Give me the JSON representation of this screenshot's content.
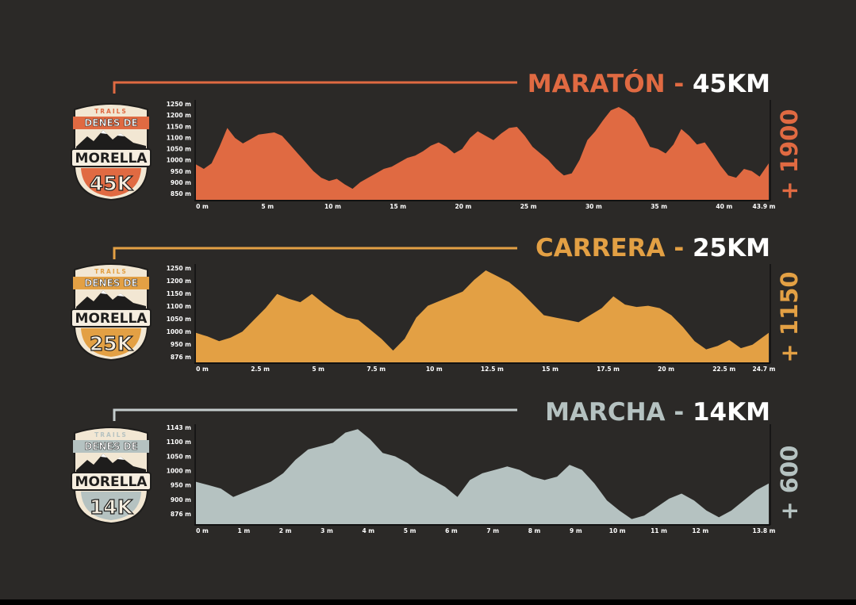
{
  "chart_data": [
    {
      "type": "area",
      "title_name": "MARATÓN",
      "title_sep": " - ",
      "title_dist": "45KM",
      "gain": "+ 1900",
      "color": "#e06a42",
      "line_color": "#e06a42",
      "badge": {
        "top": "TRAILS",
        "name1": "DENES DE",
        "name2": "MORELLA",
        "dist": "45K"
      },
      "x_ticks": [
        "0 m",
        "5 m",
        "10 m",
        "15 m",
        "20 m",
        "25 m",
        "30 m",
        "35 m",
        "40 m",
        "43.9 m"
      ],
      "x_tick_values": [
        0,
        5,
        10,
        15,
        20,
        25,
        30,
        35,
        40,
        43.9
      ],
      "y_ticks": [
        "1250 m",
        "1200 m",
        "1150 m",
        "1100 m",
        "1050 m",
        "1000 m",
        "950 m",
        "900 m",
        "850 m"
      ],
      "y_tick_values": [
        1250,
        1200,
        1150,
        1100,
        1050,
        1000,
        950,
        900,
        850
      ],
      "xlim": [
        0,
        43.9
      ],
      "ylim": [
        820,
        1265
      ],
      "x": [
        0,
        0.6,
        1.2,
        1.8,
        2.4,
        3,
        3.6,
        4.2,
        4.8,
        5.4,
        6,
        6.6,
        7.2,
        7.8,
        8.4,
        9,
        9.6,
        10.2,
        10.8,
        11.4,
        12,
        12.6,
        13.2,
        13.8,
        14.4,
        15,
        15.6,
        16.2,
        16.8,
        17.4,
        18,
        18.6,
        19.2,
        19.8,
        20.4,
        21,
        21.6,
        22.2,
        22.8,
        23.4,
        24,
        24.6,
        25.2,
        25.8,
        26.4,
        27,
        27.6,
        28.2,
        28.8,
        29.4,
        30,
        30.6,
        31.2,
        31.8,
        32.4,
        33,
        33.6,
        34.2,
        34.8,
        35.4,
        36,
        36.6,
        37.2,
        37.8,
        38.4,
        39,
        39.6,
        40.2,
        40.8,
        41.4,
        42,
        42.6,
        43.2,
        43.9
      ],
      "y": [
        980,
        960,
        985,
        1060,
        1145,
        1100,
        1075,
        1095,
        1115,
        1120,
        1125,
        1110,
        1070,
        1030,
        990,
        950,
        920,
        905,
        915,
        890,
        870,
        900,
        920,
        940,
        960,
        970,
        990,
        1010,
        1020,
        1040,
        1065,
        1080,
        1060,
        1030,
        1050,
        1100,
        1130,
        1110,
        1090,
        1120,
        1145,
        1150,
        1110,
        1060,
        1030,
        1000,
        960,
        930,
        940,
        1000,
        1090,
        1130,
        1180,
        1225,
        1240,
        1220,
        1190,
        1130,
        1060,
        1050,
        1030,
        1070,
        1140,
        1110,
        1070,
        1080,
        1030,
        975,
        930,
        920,
        960,
        950,
        925,
        985
      ]
    },
    {
      "type": "area",
      "title_name": "CARRERA",
      "title_sep": " - ",
      "title_dist": "25KM",
      "gain": "+ 1150",
      "color": "#e3a044",
      "line_color": "#e3a044",
      "badge": {
        "top": "TRAILS",
        "name1": "DENES DE",
        "name2": "MORELLA",
        "dist": "25K"
      },
      "x_ticks": [
        "0 m",
        "2.5 m",
        "5 m",
        "7.5 m",
        "10 m",
        "12.5 m",
        "15 m",
        "17.5 m",
        "20 m",
        "22.5 m",
        "24.7 m"
      ],
      "x_tick_values": [
        0,
        2.5,
        5,
        7.5,
        10,
        12.5,
        15,
        17.5,
        20,
        22.5,
        24.7
      ],
      "y_ticks": [
        "1250 m",
        "1200 m",
        "1150 m",
        "1100 m",
        "1050 m",
        "1000 m",
        "950 m",
        "876 m"
      ],
      "y_tick_values": [
        1250,
        1200,
        1150,
        1100,
        1050,
        1000,
        950,
        876
      ],
      "xlim": [
        0,
        24.7
      ],
      "ylim": [
        850,
        1260
      ],
      "x": [
        0,
        0.5,
        1,
        1.5,
        2,
        2.5,
        3,
        3.5,
        4,
        4.5,
        5,
        5.5,
        6,
        6.5,
        7,
        7.5,
        8,
        8.5,
        9,
        9.5,
        10,
        10.5,
        11,
        11.5,
        12,
        12.5,
        13,
        13.5,
        14,
        14.5,
        15,
        15.5,
        16,
        16.5,
        17,
        17.5,
        18,
        18.5,
        19,
        19.5,
        20,
        20.5,
        21,
        21.5,
        22,
        22.5,
        23,
        23.5,
        24,
        24.7
      ],
      "y": [
        975,
        960,
        940,
        955,
        980,
        1030,
        1080,
        1140,
        1120,
        1105,
        1140,
        1100,
        1065,
        1040,
        1030,
        990,
        950,
        900,
        950,
        1040,
        1090,
        1110,
        1130,
        1150,
        1200,
        1240,
        1215,
        1190,
        1150,
        1100,
        1050,
        1040,
        1030,
        1020,
        1050,
        1080,
        1130,
        1095,
        1085,
        1090,
        1080,
        1050,
        1000,
        940,
        905,
        920,
        945,
        910,
        925,
        975
      ]
    },
    {
      "type": "area",
      "title_name": "MARCHA",
      "title_sep": " - ",
      "title_dist": "14KM",
      "gain": "+ 600",
      "color": "#b5c2c1",
      "line_color": "#c4cccc",
      "badge": {
        "top": "TRAILS",
        "name1": "DENES DE",
        "name2": "MORELLA",
        "dist": "14K"
      },
      "x_ticks": [
        "0 m",
        "1 m",
        "2 m",
        "3 m",
        "4 m",
        "5 m",
        "6 m",
        "7 m",
        "8 m",
        "9 m",
        "10 m",
        "11 m",
        "12 m",
        "13.8 m"
      ],
      "x_tick_values": [
        0,
        1,
        2,
        3,
        4,
        5,
        6,
        7,
        8,
        9,
        10,
        11,
        12,
        13.8
      ],
      "y_ticks": [
        "1143 m",
        "1100 m",
        "1050 m",
        "1000 m",
        "950 m",
        "900 m",
        "876 m"
      ],
      "y_tick_values": [
        1143,
        1100,
        1050,
        1000,
        950,
        900,
        876
      ],
      "xlim": [
        0,
        13.8
      ],
      "ylim": [
        860,
        1150
      ],
      "x": [
        0,
        0.3,
        0.6,
        0.9,
        1.2,
        1.5,
        1.8,
        2.1,
        2.4,
        2.7,
        3,
        3.3,
        3.6,
        3.9,
        4.2,
        4.5,
        4.8,
        5.1,
        5.4,
        5.7,
        6,
        6.3,
        6.6,
        6.9,
        7.2,
        7.5,
        7.8,
        8.1,
        8.4,
        8.7,
        9,
        9.3,
        9.6,
        9.9,
        10.2,
        10.5,
        10.8,
        11.1,
        11.4,
        11.7,
        12,
        12.3,
        12.6,
        12.9,
        13.2,
        13.5,
        13.8
      ],
      "y": [
        985,
        975,
        965,
        940,
        955,
        970,
        985,
        1010,
        1050,
        1080,
        1090,
        1100,
        1130,
        1140,
        1110,
        1070,
        1060,
        1040,
        1010,
        990,
        970,
        940,
        990,
        1010,
        1020,
        1030,
        1020,
        1000,
        990,
        1000,
        1035,
        1020,
        980,
        930,
        900,
        875,
        885,
        910,
        935,
        950,
        930,
        900,
        880,
        900,
        930,
        960,
        980
      ]
    }
  ]
}
